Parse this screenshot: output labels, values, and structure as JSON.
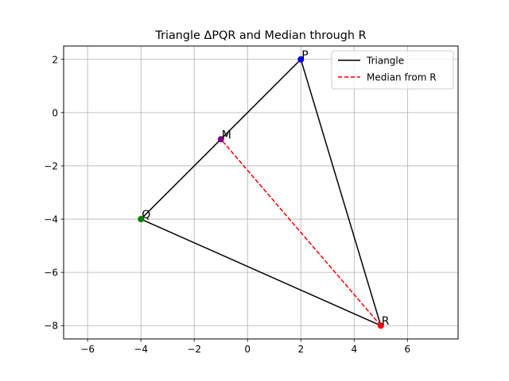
{
  "chart_data": {
    "type": "line",
    "title": "Triangle ΔPQR and Median through R",
    "xlabel": "",
    "ylabel": "",
    "xlim": [
      -6.9,
      7.9
    ],
    "ylim": [
      -8.5,
      2.5
    ],
    "xticks": [
      -6,
      -4,
      -2,
      0,
      2,
      4,
      6
    ],
    "yticks": [
      -8,
      -6,
      -4,
      -2,
      0,
      2
    ],
    "grid": true,
    "legend_position": "upper right",
    "series": [
      {
        "name": "Triangle",
        "style": "solid",
        "color": "#000000",
        "x": [
          2,
          -4,
          5,
          2
        ],
        "y": [
          2,
          -4,
          -8,
          2
        ]
      },
      {
        "name": "Median from R",
        "style": "dashed",
        "color": "#ff0000",
        "x": [
          5,
          -1
        ],
        "y": [
          -8,
          -1
        ]
      }
    ],
    "points": [
      {
        "label": "P",
        "x": 2,
        "y": 2,
        "color": "#0000ff"
      },
      {
        "label": "Q",
        "x": -4,
        "y": -4,
        "color": "#008000"
      },
      {
        "label": "R",
        "x": 5,
        "y": -8,
        "color": "#ff0000"
      },
      {
        "label": "M",
        "x": -1,
        "y": -1,
        "color": "#800080"
      }
    ]
  }
}
